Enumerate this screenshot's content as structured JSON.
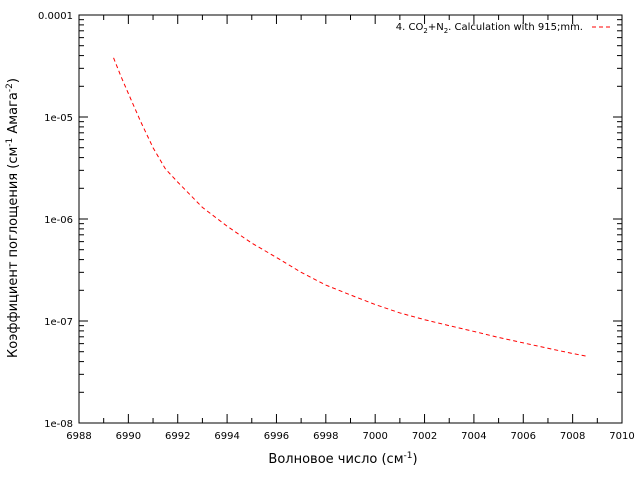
{
  "chart_data": {
    "type": "line",
    "title": "",
    "xlabel": "Волновое число (см",
    "xlabel_sup": "-1",
    "xlabel_end": ")",
    "ylabel": "Коэффициент поглощения (см",
    "ylabel_sup1": "-1",
    "ylabel_mid": " Амага",
    "ylabel_sup2": "-2",
    "ylabel_end": ")",
    "xlim": [
      6988,
      7010
    ],
    "ylim": [
      1e-08,
      0.0001
    ],
    "yscale": "log",
    "x_ticks": [
      "6988",
      "6990",
      "6992",
      "6994",
      "6996",
      "6998",
      "7000",
      "7002",
      "7004",
      "7006",
      "7008",
      "7010"
    ],
    "y_ticks": [
      "1e-08",
      "1e-07",
      "1e-06",
      "1e-05",
      "0.0001"
    ],
    "grid": false,
    "legend_position": "top-right",
    "legend": {
      "p1": "4. CO",
      "sub1": "2",
      "p2": "+N",
      "sub2": "2",
      "p3": ". Calculation with   915;mm."
    },
    "series": [
      {
        "name": "4. CO2+N2. Calculation with 915;mm.",
        "color": "#ff0000",
        "style": "dashed",
        "x": [
          6989.4,
          6989.7,
          6990.0,
          6990.5,
          6991.0,
          6991.5,
          6992.0,
          6993.0,
          6994.0,
          6995.0,
          6996.0,
          6997.0,
          6998.0,
          6999.0,
          7000.0,
          7001.0,
          7002.0,
          7003.0,
          7004.0,
          7005.0,
          7006.0,
          7007.0,
          7008.0,
          7008.6
        ],
        "y": [
          3.8e-05,
          2.5e-05,
          1.7e-05,
          9e-06,
          5e-06,
          3.1e-06,
          2.3e-06,
          1.3e-06,
          8.5e-07,
          5.8e-07,
          4.2e-07,
          3e-07,
          2.25e-07,
          1.8e-07,
          1.45e-07,
          1.2e-07,
          1.03e-07,
          9e-08,
          7.9e-08,
          6.9e-08,
          6.1e-08,
          5.4e-08,
          4.8e-08,
          4.5e-08
        ]
      }
    ]
  }
}
